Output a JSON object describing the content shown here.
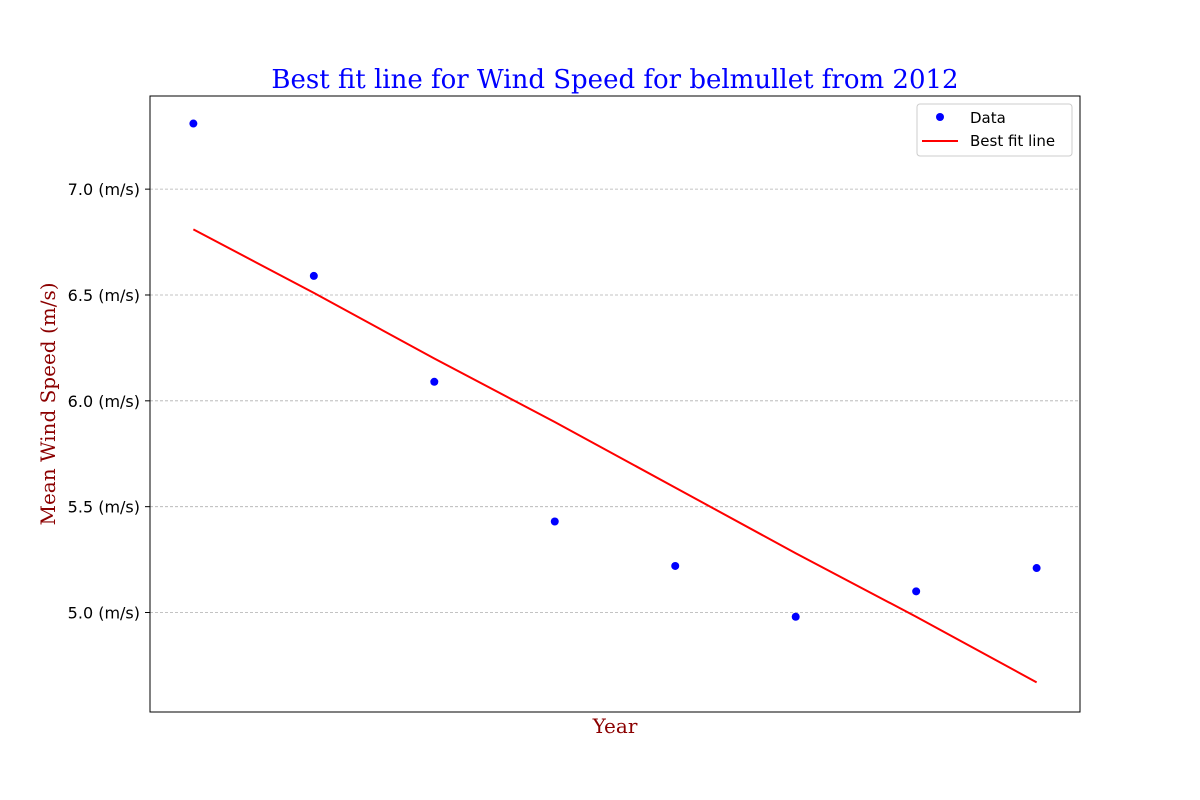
{
  "chart_data": {
    "type": "scatter",
    "title": "Best fit line for Wind Speed for belmullet from 2012",
    "xlabel": "Year",
    "ylabel": "Mean Wind Speed (m/s)",
    "x": [
      0,
      1,
      2,
      3,
      4,
      5,
      6,
      7
    ],
    "xlim": [
      -0.36,
      7.36
    ],
    "ylim": [
      4.53,
      7.44
    ],
    "y_ticks": [
      5.0,
      5.5,
      6.0,
      6.5,
      7.0
    ],
    "y_tick_labels": [
      "5.0 (m/s)",
      "5.5 (m/s)",
      "6.0 (m/s)",
      "6.5 (m/s)",
      "7.0 (m/s)"
    ],
    "grid": "horizontal dashed",
    "legend_position": "top-right",
    "series": [
      {
        "name": "Data",
        "kind": "points",
        "color": "#0000ff",
        "values": [
          7.31,
          6.59,
          6.09,
          5.43,
          5.22,
          4.98,
          5.1,
          5.21
        ]
      },
      {
        "name": "Best fit line",
        "kind": "line",
        "color": "#ff0000",
        "values": [
          6.81,
          6.51,
          6.2,
          5.9,
          5.59,
          5.28,
          4.98,
          4.67
        ]
      }
    ]
  }
}
